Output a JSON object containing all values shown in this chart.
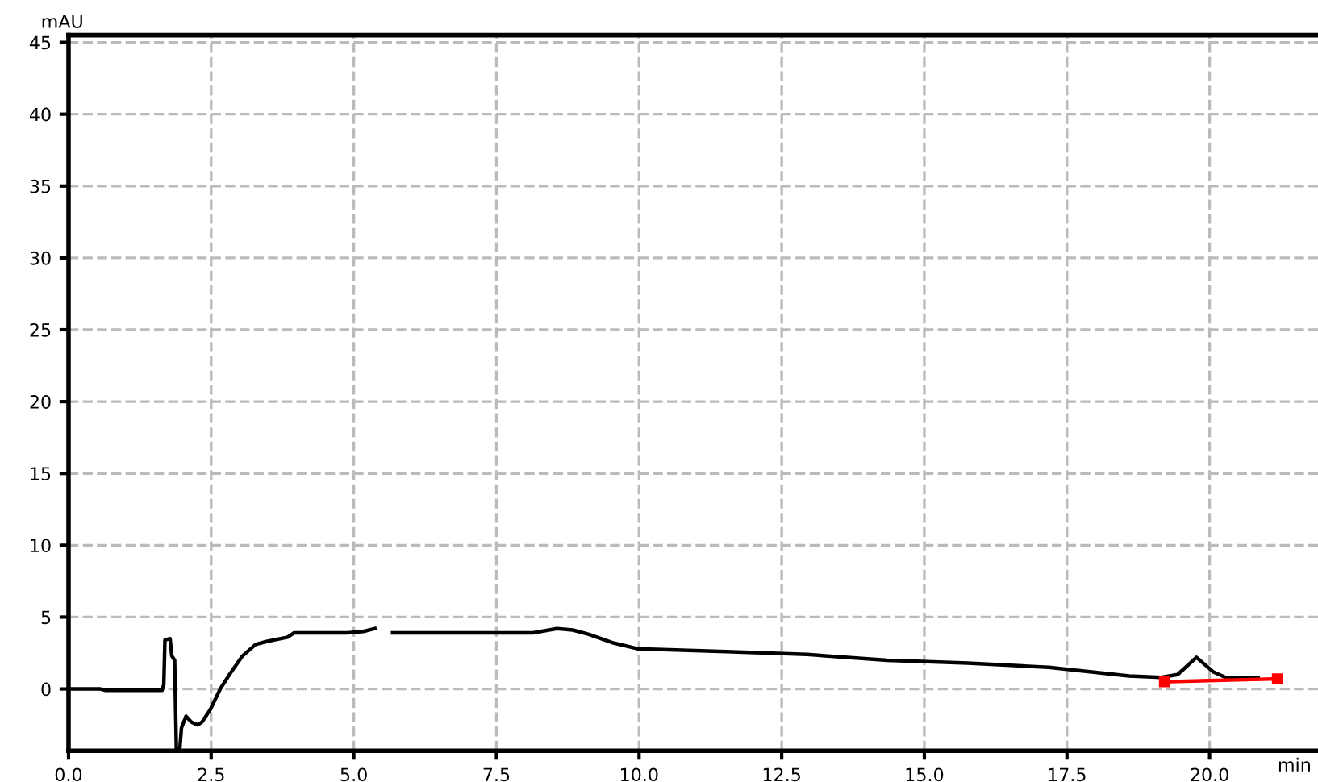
{
  "chart_data": {
    "type": "line",
    "xlabel": "min",
    "ylabel": "mAU",
    "xlim": [
      0,
      21.9
    ],
    "ylim": [
      -4.3,
      45.5
    ],
    "xticks": [
      {
        "value": 0,
        "label": "0.0"
      },
      {
        "value": 2.5,
        "label": "2.5"
      },
      {
        "value": 5,
        "label": "5.0"
      },
      {
        "value": 7.5,
        "label": "7.5"
      },
      {
        "value": 10,
        "label": "10.0"
      },
      {
        "value": 12.5,
        "label": "12.5"
      },
      {
        "value": 15,
        "label": "15.0"
      },
      {
        "value": 17.5,
        "label": "17.5"
      },
      {
        "value": 20,
        "label": "20.0"
      }
    ],
    "yticks": [
      0,
      5,
      10,
      15,
      20,
      25,
      30,
      35,
      40,
      45
    ],
    "grid": true,
    "legend": false,
    "series": [
      {
        "color": "#000000",
        "x": [
          0,
          0.56,
          0.65,
          1.64,
          1.67,
          1.69,
          1.78,
          1.81,
          1.86,
          1.89,
          1.95,
          1.98,
          2.06,
          2.15,
          2.26,
          2.34,
          2.49,
          2.66,
          2.82,
          3.05,
          3.28,
          3.47,
          3.84,
          3.95,
          4.46,
          4.89,
          5.17,
          5.37,
          5.5,
          5.68,
          8.14,
          8.28,
          8.56,
          8.84,
          9.12,
          9.55,
          9.97,
          11.53,
          12.94,
          14.35,
          15.76,
          17.18,
          18.59,
          19.15,
          19.44,
          19.77,
          20.06,
          20.28,
          20.85
        ],
        "values": [
          0,
          0,
          -0.1,
          -0.1,
          0.3,
          3.4,
          3.5,
          2.3,
          2.0,
          -4.2,
          -4.2,
          -2.7,
          -1.9,
          -2.3,
          -2.5,
          -2.3,
          -1.4,
          0,
          1.0,
          2.3,
          3.1,
          3.3,
          3.6,
          3.9,
          3.9,
          3.9,
          4.0,
          4.2,
          null,
          3.9,
          3.9,
          4.0,
          4.2,
          4.1,
          3.8,
          3.2,
          2.8,
          2.6,
          2.4,
          2.0,
          1.8,
          1.5,
          0.9,
          0.8,
          1.0,
          2.2,
          1.2,
          0.8,
          0.8
        ]
      },
      {
        "color": "#ff0000",
        "marker": "square",
        "x": [
          19.21,
          21.19
        ],
        "values": [
          0.5,
          0.7
        ]
      }
    ]
  }
}
